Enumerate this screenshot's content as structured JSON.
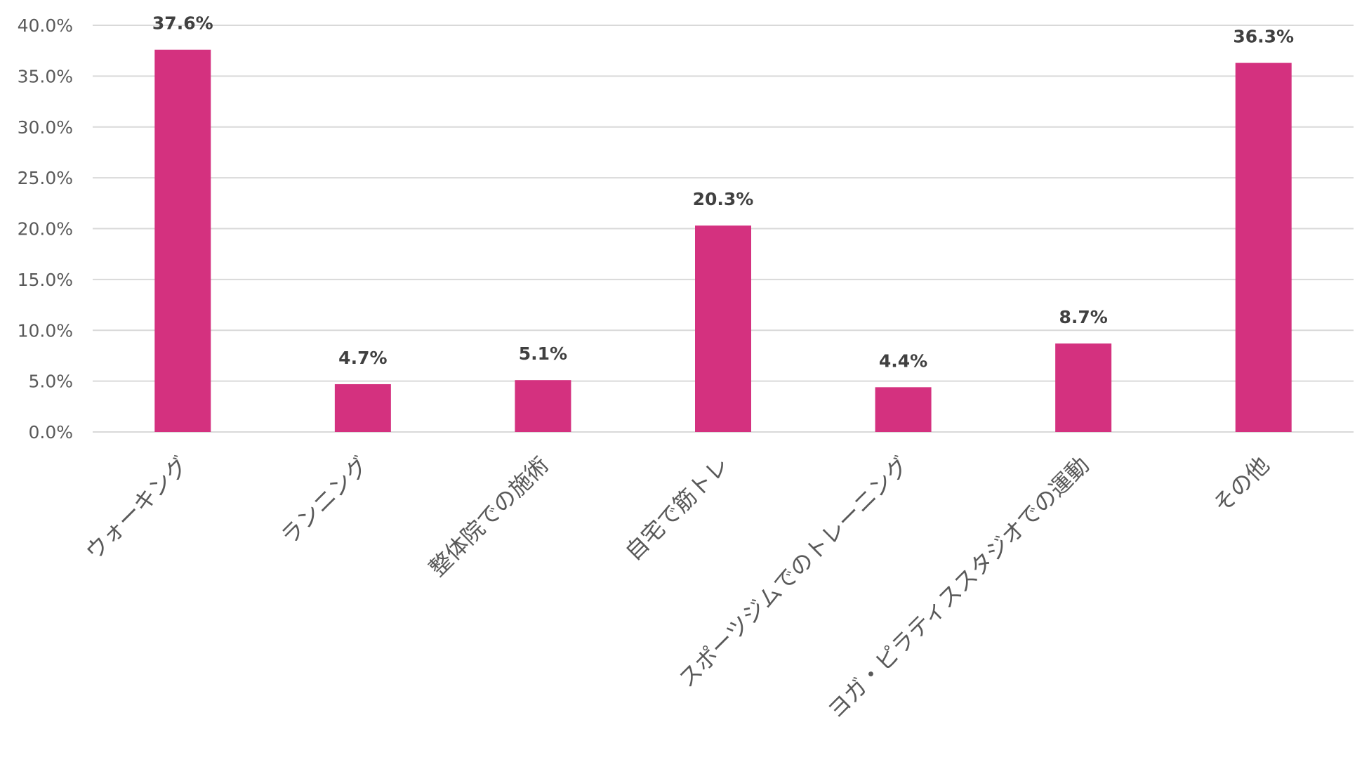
{
  "chart_data": {
    "type": "bar",
    "title": "",
    "xlabel": "",
    "ylabel": "",
    "categories": [
      "ウォーキング",
      "ランニング",
      "整体院での施術",
      "自宅で筋トレ",
      "スポーツジムでのトレーニング",
      "ヨガ・ピラティススタジオでの運動",
      "その他"
    ],
    "values": [
      37.6,
      4.7,
      5.1,
      20.3,
      4.4,
      8.7,
      36.3
    ],
    "data_labels": [
      "37.6%",
      "4.7%",
      "5.1%",
      "20.3%",
      "4.4%",
      "8.7%",
      "36.3%"
    ],
    "y_ticks": [
      "0.0%",
      "5.0%",
      "10.0%",
      "15.0%",
      "20.0%",
      "25.0%",
      "30.0%",
      "35.0%",
      "40.0%"
    ],
    "ylim": [
      0,
      40
    ],
    "grid": true,
    "legend": "none",
    "bar_color": "#d4317f"
  }
}
